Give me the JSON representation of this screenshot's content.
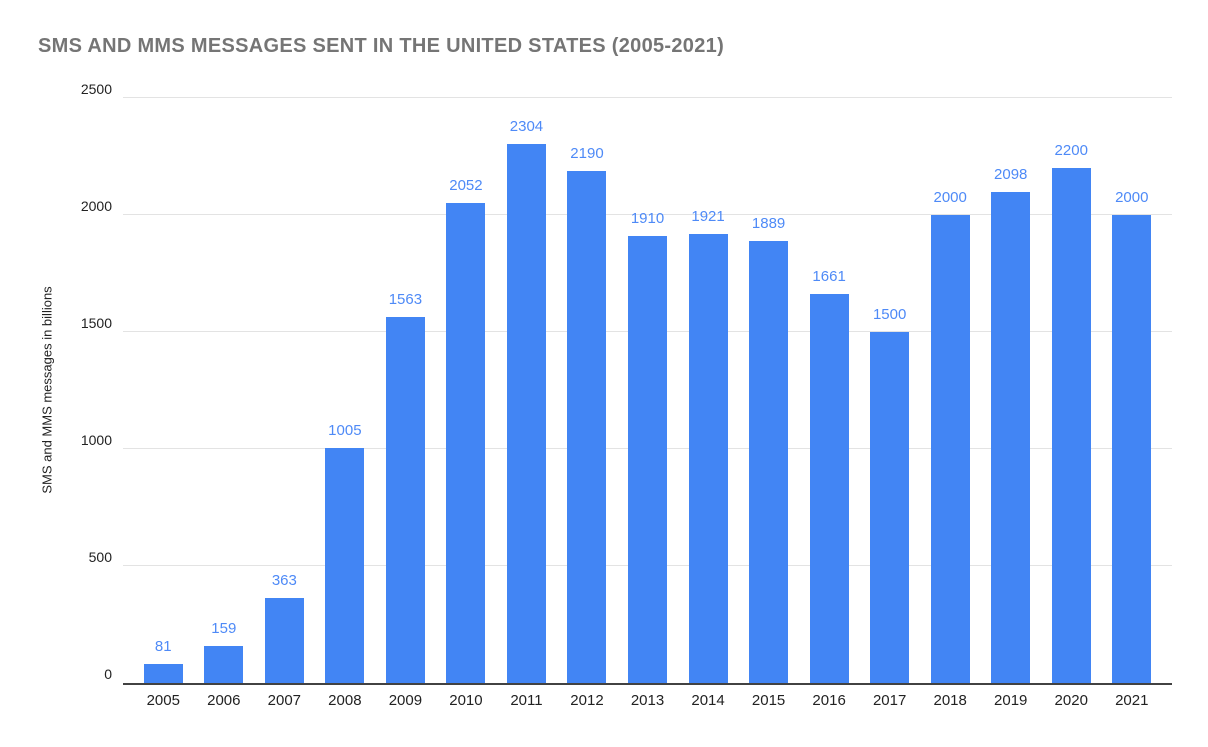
{
  "chart_data": {
    "type": "bar",
    "title": "SMS AND MMS MESSAGES SENT IN THE UNITED STATES (2005-2021)",
    "xlabel": "",
    "ylabel": "SMS and MMS messages in billions",
    "categories": [
      "2005",
      "2006",
      "2007",
      "2008",
      "2009",
      "2010",
      "2011",
      "2012",
      "2013",
      "2014",
      "2015",
      "2016",
      "2017",
      "2018",
      "2019",
      "2020",
      "2021"
    ],
    "values": [
      81,
      159,
      363,
      1005,
      1563,
      2052,
      2304,
      2190,
      1910,
      1921,
      1889,
      1661,
      1500,
      2000,
      2098,
      2200,
      2000
    ],
    "value_labels": [
      "81",
      "159",
      "363",
      "1005",
      "1563",
      "2052",
      "2304",
      "2190",
      "1910",
      "1921",
      "1889",
      "1661",
      "1500",
      "2000",
      "2098",
      "2200",
      "2000"
    ],
    "ylim": [
      0,
      2500
    ],
    "yticks": [
      0,
      500,
      1000,
      1500,
      2000,
      2500
    ],
    "grid": true,
    "legend": "none",
    "colors": {
      "bar": "#4285f4",
      "value_label": "#4e8af7",
      "title": "#757575",
      "axis_text": "#222222",
      "gridline": "#e3e3e3",
      "axis_line": "#424242",
      "background": "#ffffff"
    }
  }
}
